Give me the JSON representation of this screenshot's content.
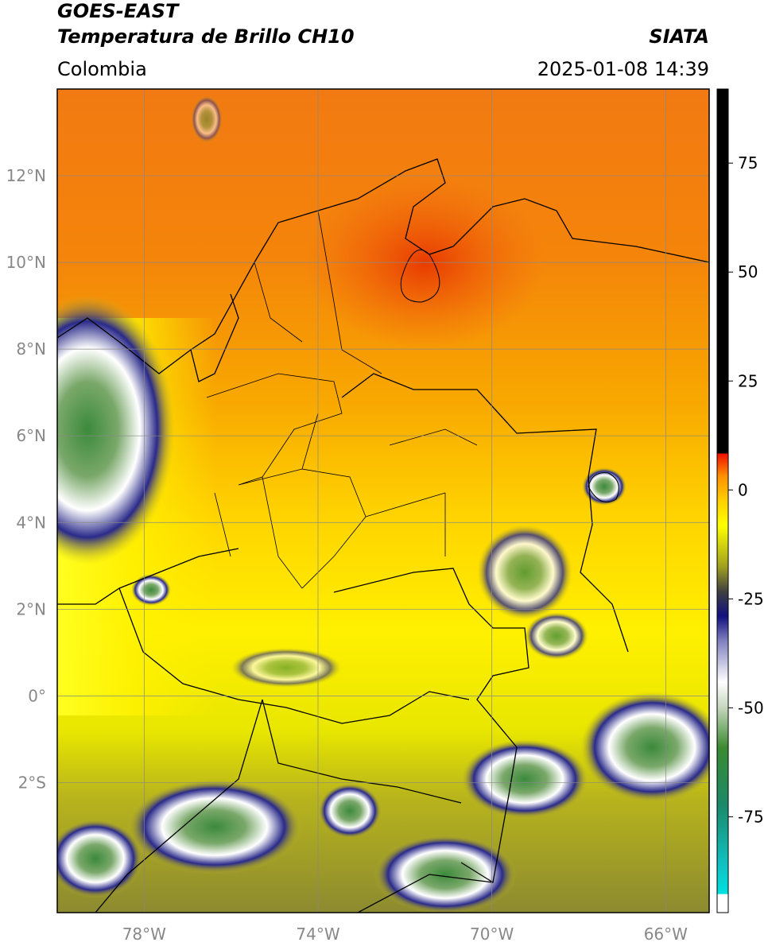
{
  "header": {
    "title": "GOES-EAST",
    "subtitle": "Temperatura de Brillo CH10",
    "source": "SIATA",
    "region": "Colombia",
    "datetime": "2025-01-08 14:39"
  },
  "map": {
    "xlim": [
      -80,
      -65
    ],
    "ylim": [
      -5,
      14
    ],
    "xticks": [
      {
        "value": -78,
        "label": "78°W"
      },
      {
        "value": -74,
        "label": "74°W"
      },
      {
        "value": -70,
        "label": "70°W"
      },
      {
        "value": -66,
        "label": "66°W"
      }
    ],
    "yticks": [
      {
        "value": 12,
        "label": "12°N"
      },
      {
        "value": 10,
        "label": "10°N"
      },
      {
        "value": 8,
        "label": "8°N"
      },
      {
        "value": 6,
        "label": "6°N"
      },
      {
        "value": 4,
        "label": "4°N"
      },
      {
        "value": 2,
        "label": "2°N"
      },
      {
        "value": 0,
        "label": "0°"
      },
      {
        "value": -2,
        "label": "2°S"
      }
    ],
    "grid": true
  },
  "colorbar": {
    "lim": [
      -97,
      92
    ],
    "ticks": [
      75,
      50,
      25,
      0,
      -25,
      -50,
      -75
    ]
  }
}
